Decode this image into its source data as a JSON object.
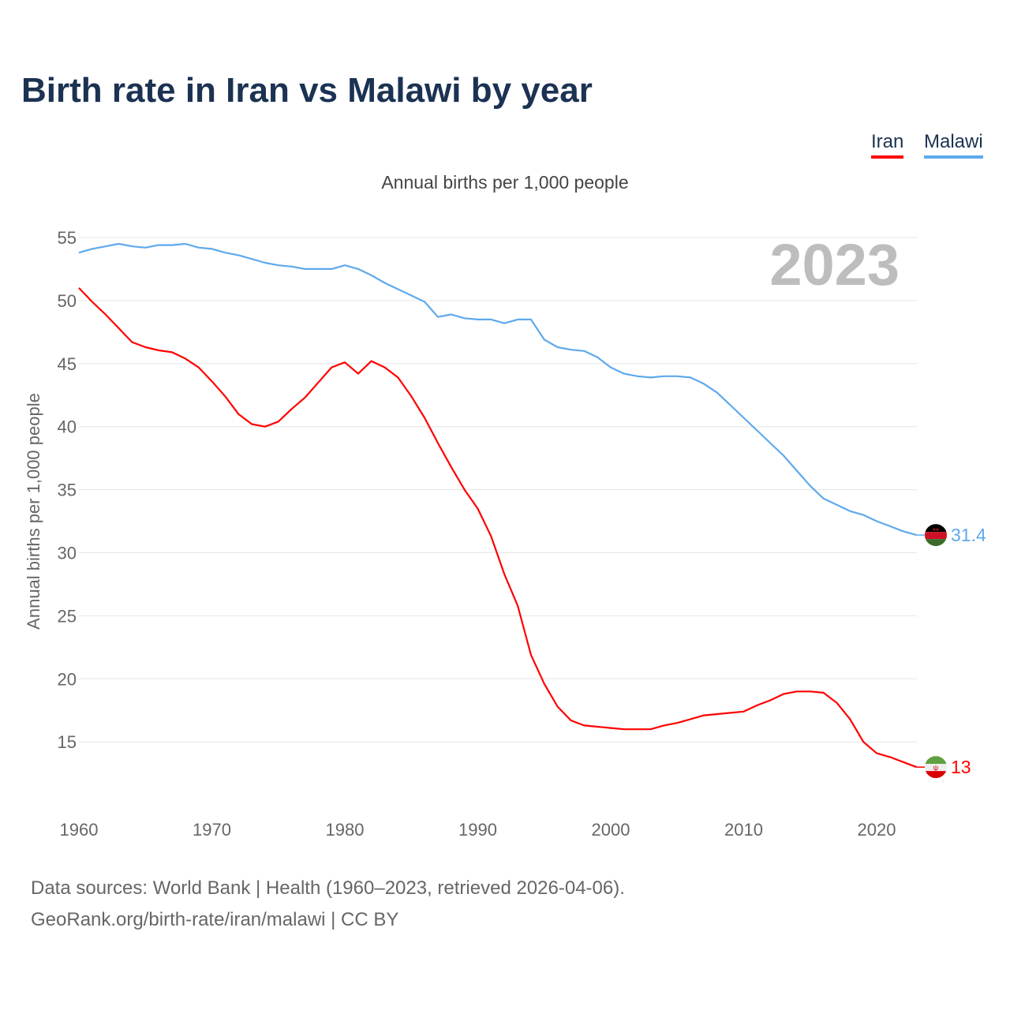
{
  "title": "Birth rate in Iran vs Malawi by year",
  "legend": [
    {
      "label": "Iran",
      "color": "#ff0000"
    },
    {
      "label": "Malawi",
      "color": "#5ea9ec"
    }
  ],
  "footer": {
    "line1": "Data sources: World Bank | Health (1960–2023, retrieved 2026-04-06).",
    "line2": "GeoRank.org/birth-rate/iran/malawi | CC BY"
  },
  "chart_data": {
    "type": "line",
    "title": "Birth rate in Iran vs Malawi by year",
    "subtitle": "Annual births per 1,000 people",
    "ylabel": "Annual births per 1,000 people",
    "xlabel": "",
    "year_watermark": "2023",
    "xlim": [
      1960,
      2023
    ],
    "ylim": [
      10,
      55
    ],
    "xticks": [
      "1960",
      "1970",
      "1980",
      "1990",
      "2000",
      "2010",
      "2020"
    ],
    "yticks": [
      "15",
      "20",
      "25",
      "30",
      "35",
      "40",
      "45",
      "50",
      "55"
    ],
    "grid": true,
    "legend_placement": "top-right",
    "x_start": 1960,
    "series": [
      {
        "name": "Iran",
        "color": "#ff0000",
        "end_label": "13",
        "values": [
          51.0,
          49.9,
          48.9,
          47.8,
          46.7,
          46.3,
          46.05,
          45.9,
          45.4,
          44.7,
          43.6,
          42.4,
          41.0,
          40.2,
          40.0,
          40.4,
          41.4,
          42.3,
          43.5,
          44.7,
          45.1,
          44.2,
          45.2,
          44.7,
          43.9,
          42.4,
          40.7,
          38.7,
          36.8,
          35.0,
          33.5,
          31.3,
          28.3,
          25.8,
          21.9,
          19.6,
          17.8,
          16.7,
          16.3,
          16.2,
          16.1,
          16.0,
          16.0,
          16.0,
          16.3,
          16.5,
          16.8,
          17.1,
          17.2,
          17.3,
          17.4,
          17.9,
          18.3,
          18.8,
          19.0,
          19.0,
          18.9,
          18.1,
          16.8,
          15.0,
          14.1,
          13.8,
          13.4,
          13.0
        ]
      },
      {
        "name": "Malawi",
        "color": "#5ea9ec",
        "end_label": "31.4",
        "values": [
          53.8,
          54.1,
          54.3,
          54.5,
          54.3,
          54.2,
          54.4,
          54.4,
          54.5,
          54.2,
          54.1,
          53.8,
          53.6,
          53.3,
          53.0,
          52.8,
          52.7,
          52.5,
          52.5,
          52.5,
          52.8,
          52.5,
          52.0,
          51.4,
          50.9,
          50.4,
          49.9,
          48.7,
          48.9,
          48.6,
          48.5,
          48.5,
          48.2,
          48.5,
          48.5,
          46.9,
          46.3,
          46.1,
          46.0,
          45.5,
          44.7,
          44.2,
          44.0,
          43.9,
          44.0,
          44.0,
          43.9,
          43.4,
          42.7,
          41.7,
          40.7,
          39.7,
          38.7,
          37.7,
          36.5,
          35.3,
          34.3,
          33.8,
          33.3,
          33.0,
          32.5,
          32.1,
          31.7,
          31.4
        ]
      }
    ]
  }
}
